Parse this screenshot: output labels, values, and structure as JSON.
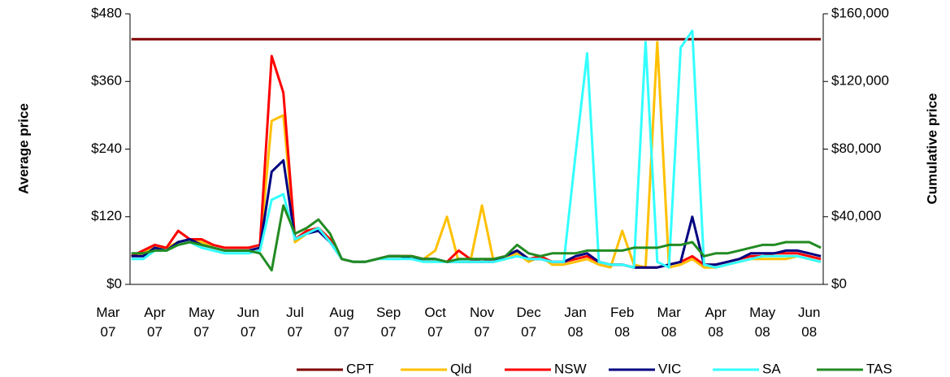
{
  "chart_data": {
    "type": "line",
    "x": [
      0.5,
      0.75,
      1.0,
      1.25,
      1.5,
      1.75,
      2.0,
      2.25,
      2.5,
      2.75,
      3.0,
      3.25,
      3.5,
      3.75,
      4.0,
      4.25,
      4.5,
      4.75,
      5.0,
      5.25,
      5.5,
      5.75,
      6.0,
      6.25,
      6.5,
      6.75,
      7.0,
      7.25,
      7.5,
      7.75,
      8.0,
      8.25,
      8.5,
      8.75,
      9.0,
      9.25,
      9.5,
      9.75,
      10.0,
      10.25,
      10.5,
      10.75,
      11.0,
      11.25,
      11.5,
      11.75,
      12.0,
      12.25,
      12.5,
      12.75,
      13.0,
      13.25,
      13.5,
      13.75,
      14.0,
      14.25,
      14.5,
      14.75,
      15.0,
      15.25
    ],
    "xlim": [
      0.47,
      15.3
    ],
    "xticks": [
      {
        "value": 0,
        "label": "Mar 07"
      },
      {
        "value": 1,
        "label": "Apr 07"
      },
      {
        "value": 2,
        "label": "May 07"
      },
      {
        "value": 3,
        "label": "Jun 07"
      },
      {
        "value": 4,
        "label": "Jul 07"
      },
      {
        "value": 5,
        "label": "Aug 07"
      },
      {
        "value": 6,
        "label": "Sep 07"
      },
      {
        "value": 7,
        "label": "Oct 07"
      },
      {
        "value": 8,
        "label": "Nov 07"
      },
      {
        "value": 9,
        "label": "Dec 07"
      },
      {
        "value": 10,
        "label": "Jan 08"
      },
      {
        "value": 11,
        "label": "Feb 08"
      },
      {
        "value": 12,
        "label": "Mar 08"
      },
      {
        "value": 13,
        "label": "Apr 08"
      },
      {
        "value": 14,
        "label": "May 08"
      },
      {
        "value": 15,
        "label": "Jun 08"
      }
    ],
    "ylabel": "Average price",
    "y2label": "Cumulative price",
    "ylim": [
      0,
      480
    ],
    "yticks": [
      {
        "value": 0,
        "label": "$0"
      },
      {
        "value": 120,
        "label": "$120"
      },
      {
        "value": 240,
        "label": "$240"
      },
      {
        "value": 360,
        "label": "$360"
      },
      {
        "value": 480,
        "label": "$480"
      }
    ],
    "y2lim": [
      0,
      160000
    ],
    "y2ticks": [
      {
        "value": 0,
        "label": "$0"
      },
      {
        "value": 40000,
        "label": "$40,000"
      },
      {
        "value": 80000,
        "label": "$80,000"
      },
      {
        "value": 120000,
        "label": "$120,000"
      },
      {
        "value": 160000,
        "label": "$160,000"
      }
    ],
    "legend": "bottom",
    "series": [
      {
        "name": "CPT",
        "color": "#800000",
        "axis": "y2",
        "values": [
          145000,
          145000,
          145000,
          145000,
          145000,
          145000,
          145000,
          145000,
          145000,
          145000,
          145000,
          145000,
          145000,
          145000,
          145000,
          145000,
          145000,
          145000,
          145000,
          145000,
          145000,
          145000,
          145000,
          145000,
          145000,
          145000,
          145000,
          145000,
          145000,
          145000,
          145000,
          145000,
          145000,
          145000,
          145000,
          145000,
          145000,
          145000,
          145000,
          145000,
          145000,
          145000,
          145000,
          145000,
          145000,
          145000,
          145000,
          145000,
          145000,
          145000,
          145000,
          145000,
          145000,
          145000,
          145000,
          145000,
          145000,
          145000,
          145000,
          145000
        ]
      },
      {
        "name": "Qld",
        "color": "#ffc000",
        "values": [
          50,
          55,
          65,
          65,
          75,
          80,
          75,
          65,
          60,
          60,
          60,
          65,
          290,
          300,
          75,
          90,
          100,
          80,
          45,
          40,
          40,
          45,
          50,
          50,
          50,
          45,
          60,
          120,
          40,
          40,
          140,
          40,
          45,
          55,
          40,
          50,
          35,
          35,
          40,
          45,
          35,
          30,
          95,
          35,
          30,
          430,
          30,
          35,
          45,
          30,
          30,
          35,
          40,
          45,
          45,
          45,
          45,
          50,
          45,
          40
        ]
      },
      {
        "name": "NSW",
        "color": "#ff0000",
        "values": [
          50,
          60,
          70,
          65,
          95,
          80,
          80,
          70,
          65,
          65,
          65,
          70,
          405,
          340,
          80,
          95,
          100,
          80,
          45,
          40,
          40,
          45,
          50,
          50,
          50,
          45,
          45,
          40,
          60,
          45,
          40,
          45,
          50,
          60,
          45,
          50,
          40,
          40,
          45,
          50,
          40,
          35,
          35,
          30,
          30,
          30,
          35,
          40,
          50,
          35,
          35,
          40,
          45,
          50,
          50,
          55,
          55,
          55,
          50,
          45
        ]
      },
      {
        "name": "VIC",
        "color": "#000080",
        "values": [
          50,
          50,
          65,
          60,
          75,
          80,
          70,
          65,
          60,
          60,
          60,
          65,
          200,
          220,
          80,
          90,
          95,
          75,
          45,
          40,
          40,
          45,
          50,
          50,
          45,
          45,
          45,
          40,
          40,
          40,
          40,
          40,
          50,
          60,
          45,
          45,
          40,
          40,
          50,
          55,
          40,
          35,
          35,
          30,
          30,
          30,
          35,
          40,
          120,
          35,
          35,
          40,
          45,
          55,
          55,
          55,
          60,
          60,
          55,
          50
        ]
      },
      {
        "name": "SA",
        "color": "#33ffff",
        "values": [
          45,
          45,
          60,
          60,
          70,
          75,
          65,
          60,
          55,
          55,
          55,
          60,
          150,
          160,
          80,
          90,
          100,
          75,
          45,
          40,
          40,
          45,
          45,
          45,
          45,
          40,
          40,
          40,
          40,
          40,
          40,
          40,
          45,
          50,
          45,
          45,
          40,
          40,
          230,
          410,
          40,
          35,
          35,
          30,
          430,
          40,
          30,
          420,
          450,
          35,
          30,
          35,
          40,
          45,
          50,
          50,
          50,
          50,
          45,
          40
        ]
      },
      {
        "name": "TAS",
        "color": "#228b22",
        "values": [
          55,
          55,
          60,
          60,
          70,
          75,
          70,
          65,
          60,
          60,
          60,
          55,
          25,
          140,
          90,
          100,
          115,
          90,
          45,
          40,
          40,
          45,
          50,
          50,
          50,
          45,
          45,
          40,
          45,
          45,
          45,
          45,
          50,
          70,
          55,
          50,
          55,
          55,
          55,
          60,
          60,
          60,
          60,
          65,
          65,
          65,
          70,
          70,
          75,
          50,
          55,
          55,
          60,
          65,
          70,
          70,
          75,
          75,
          75,
          65
        ]
      }
    ]
  }
}
